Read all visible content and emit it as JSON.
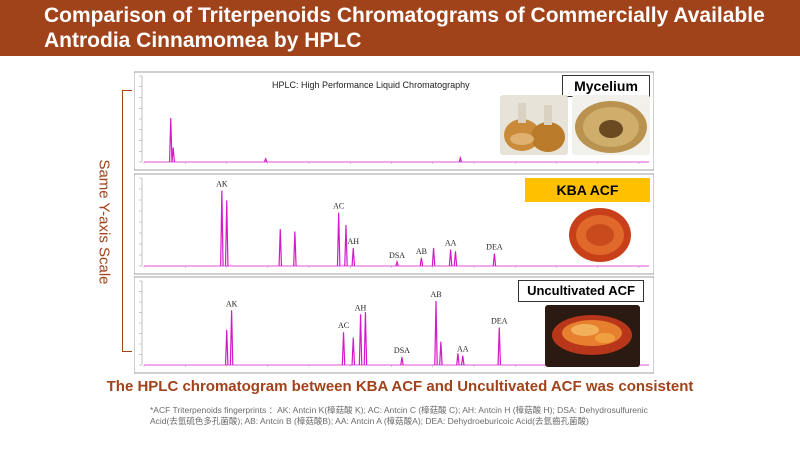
{
  "header": {
    "title": "Comparison of Triterpenoids Chromatograms of Commercially Available Antrodia Cinnamomea by HPLC"
  },
  "y_axis_note": "Same Y-axis Scale",
  "hplc_note": "HPLC: High Performance Liquid Chromatography",
  "panel_labels": {
    "mycelium": "Mycelium",
    "kba": "KBA ACF",
    "uncultivated": "Uncultivated ACF"
  },
  "conclusion": "The HPLC chromatogram between KBA ACF and Uncultivated ACF was consistent",
  "footnote": "*ACF Triterpenoids fingerprints ：AK: Antcin K(樟菇酸 K); AC: Antcin C (樟菇酸 C); AH: Antcin H (樟菇酸 H); DSA: Dehydrosulfurenic Acid(去氫硫色多孔菌酸); AB: Antcin B (樟菇酸B); AA: Antcin A (樟菇酸A); DEA: Dehydroeburicoic Acid(去氫齒孔菌酸)",
  "colors": {
    "header_bg": "#a0431b",
    "trace": "#d419c8",
    "kba_label_bg": "#ffc000",
    "accent_text": "#a0431b"
  },
  "chart_data": [
    {
      "type": "line",
      "name": "Mycelium",
      "y_range": [
        0,
        100
      ],
      "peaks": [
        {
          "rt": 0.055,
          "height": 55,
          "label": ""
        },
        {
          "rt": 0.06,
          "height": 18,
          "label": ""
        },
        {
          "rt": 0.25,
          "height": 4,
          "label": ""
        },
        {
          "rt": 0.65,
          "height": 5,
          "label": ""
        }
      ]
    },
    {
      "type": "line",
      "name": "KBA ACF",
      "y_range": [
        0,
        100
      ],
      "peaks": [
        {
          "rt": 0.16,
          "height": 92,
          "label": "AK"
        },
        {
          "rt": 0.17,
          "height": 80,
          "label": ""
        },
        {
          "rt": 0.28,
          "height": 45,
          "label": ""
        },
        {
          "rt": 0.31,
          "height": 42,
          "label": ""
        },
        {
          "rt": 0.4,
          "height": 65,
          "label": "AC"
        },
        {
          "rt": 0.415,
          "height": 50,
          "label": ""
        },
        {
          "rt": 0.43,
          "height": 22,
          "label": "AH"
        },
        {
          "rt": 0.52,
          "height": 5,
          "label": "DSA"
        },
        {
          "rt": 0.57,
          "height": 10,
          "label": "AB"
        },
        {
          "rt": 0.595,
          "height": 22,
          "label": ""
        },
        {
          "rt": 0.63,
          "height": 20,
          "label": "AA"
        },
        {
          "rt": 0.64,
          "height": 18,
          "label": ""
        },
        {
          "rt": 0.72,
          "height": 15,
          "label": "DEA"
        }
      ]
    },
    {
      "type": "line",
      "name": "Uncultivated ACF",
      "y_range": [
        0,
        100
      ],
      "peaks": [
        {
          "rt": 0.17,
          "height": 45,
          "label": ""
        },
        {
          "rt": 0.18,
          "height": 70,
          "label": "AK"
        },
        {
          "rt": 0.41,
          "height": 42,
          "label": "AC"
        },
        {
          "rt": 0.43,
          "height": 35,
          "label": ""
        },
        {
          "rt": 0.445,
          "height": 65,
          "label": "AH"
        },
        {
          "rt": 0.455,
          "height": 68,
          "label": ""
        },
        {
          "rt": 0.53,
          "height": 10,
          "label": "DSA"
        },
        {
          "rt": 0.6,
          "height": 82,
          "label": "AB"
        },
        {
          "rt": 0.61,
          "height": 30,
          "label": ""
        },
        {
          "rt": 0.645,
          "height": 15,
          "label": ""
        },
        {
          "rt": 0.655,
          "height": 12,
          "label": "AA"
        },
        {
          "rt": 0.73,
          "height": 48,
          "label": "DEA"
        }
      ]
    }
  ]
}
